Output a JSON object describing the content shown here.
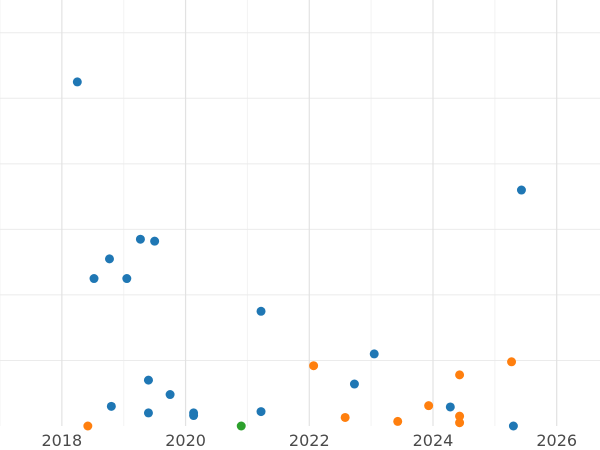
{
  "chart_data": {
    "type": "scatter",
    "title": "",
    "xlabel": "",
    "ylabel": "",
    "x_axis_type": "year",
    "xlim": [
      2017.0,
      2026.7
    ],
    "ylim": [
      0,
      6.5
    ],
    "x_ticks": [
      2018,
      2020,
      2022,
      2024,
      2026
    ],
    "x_tick_labels": [
      "2018",
      "2020",
      "2022",
      "2024",
      "2026"
    ],
    "y_gridlines": [
      1,
      2,
      3,
      4,
      5,
      6
    ],
    "grid": true,
    "legend": "none",
    "series": [
      {
        "color": "#1f77b4",
        "points": [
          {
            "x": 2018.25,
            "y": 5.25
          },
          {
            "x": 2018.52,
            "y": 2.25
          },
          {
            "x": 2018.77,
            "y": 2.55
          },
          {
            "x": 2018.8,
            "y": 0.3
          },
          {
            "x": 2019.05,
            "y": 2.25
          },
          {
            "x": 2019.27,
            "y": 2.85
          },
          {
            "x": 2019.4,
            "y": 0.7
          },
          {
            "x": 2019.4,
            "y": 0.2
          },
          {
            "x": 2019.5,
            "y": 2.82
          },
          {
            "x": 2019.75,
            "y": 0.48
          },
          {
            "x": 2020.13,
            "y": 0.2
          },
          {
            "x": 2020.13,
            "y": 0.16
          },
          {
            "x": 2021.22,
            "y": 1.75
          },
          {
            "x": 2021.22,
            "y": 0.22
          },
          {
            "x": 2022.73,
            "y": 0.64
          },
          {
            "x": 2023.05,
            "y": 1.1
          },
          {
            "x": 2024.28,
            "y": 0.29
          },
          {
            "x": 2025.3,
            "y": 0.0
          },
          {
            "x": 2025.43,
            "y": 3.6
          }
        ]
      },
      {
        "color": "#ff7f0e",
        "points": [
          {
            "x": 2018.42,
            "y": 0.0
          },
          {
            "x": 2022.07,
            "y": 0.92
          },
          {
            "x": 2022.58,
            "y": 0.13
          },
          {
            "x": 2023.43,
            "y": 0.07
          },
          {
            "x": 2023.93,
            "y": 0.31
          },
          {
            "x": 2024.43,
            "y": 0.78
          },
          {
            "x": 2024.43,
            "y": 0.15
          },
          {
            "x": 2024.43,
            "y": 0.05
          },
          {
            "x": 2025.27,
            "y": 0.98
          }
        ]
      },
      {
        "color": "#2ca02c",
        "points": [
          {
            "x": 2020.9,
            "y": 0.0
          }
        ]
      }
    ]
  }
}
